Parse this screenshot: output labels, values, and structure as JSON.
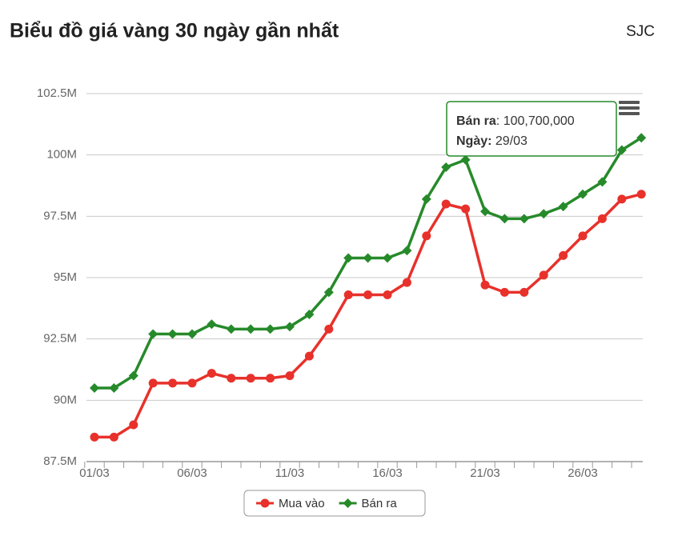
{
  "chart_data": {
    "type": "line",
    "title": "Biểu đồ giá vàng 30 ngày gần nhất",
    "source": "SJC",
    "categories": [
      "01/03",
      null,
      null,
      null,
      null,
      "06/03",
      null,
      null,
      null,
      null,
      "11/03",
      null,
      null,
      null,
      null,
      "16/03",
      null,
      null,
      null,
      null,
      "21/03",
      null,
      null,
      null,
      null,
      "26/03",
      null,
      null,
      null
    ],
    "series": [
      {
        "name": "Mua vào",
        "color": "#e8312b",
        "marker": "circle",
        "values": [
          88.5,
          88.5,
          89.0,
          90.7,
          90.7,
          90.7,
          91.1,
          90.9,
          90.9,
          90.9,
          91.0,
          91.8,
          92.9,
          94.3,
          94.3,
          94.3,
          94.8,
          96.7,
          98.0,
          97.8,
          94.7,
          94.4,
          94.4,
          95.1,
          95.9,
          96.7,
          97.4,
          98.2,
          98.4
        ]
      },
      {
        "name": "Bán ra",
        "color": "#268a2a",
        "marker": "diamond",
        "values": [
          90.5,
          90.5,
          91.0,
          92.7,
          92.7,
          92.7,
          93.1,
          92.9,
          92.9,
          92.9,
          93.0,
          93.5,
          94.4,
          95.8,
          95.8,
          95.8,
          96.1,
          98.2,
          99.5,
          99.8,
          97.7,
          97.4,
          97.4,
          97.6,
          97.9,
          98.4,
          98.9,
          100.2,
          100.7
        ]
      }
    ],
    "ylim": [
      87.5,
      102.5
    ],
    "yticks": [
      {
        "value": 87.5,
        "label": "87.5M"
      },
      {
        "value": 90,
        "label": "90M"
      },
      {
        "value": 92.5,
        "label": "92.5M"
      },
      {
        "value": 95,
        "label": "95M"
      },
      {
        "value": 97.5,
        "label": "97.5M"
      },
      {
        "value": 100,
        "label": "100M"
      },
      {
        "value": 102.5,
        "label": "102.5M"
      }
    ],
    "grid": true,
    "legend": "bottom",
    "tooltip": {
      "name": "Bán ra",
      "text": ": 100,700,000",
      "date_label": "Ngày:",
      "date": " 29/03"
    }
  }
}
